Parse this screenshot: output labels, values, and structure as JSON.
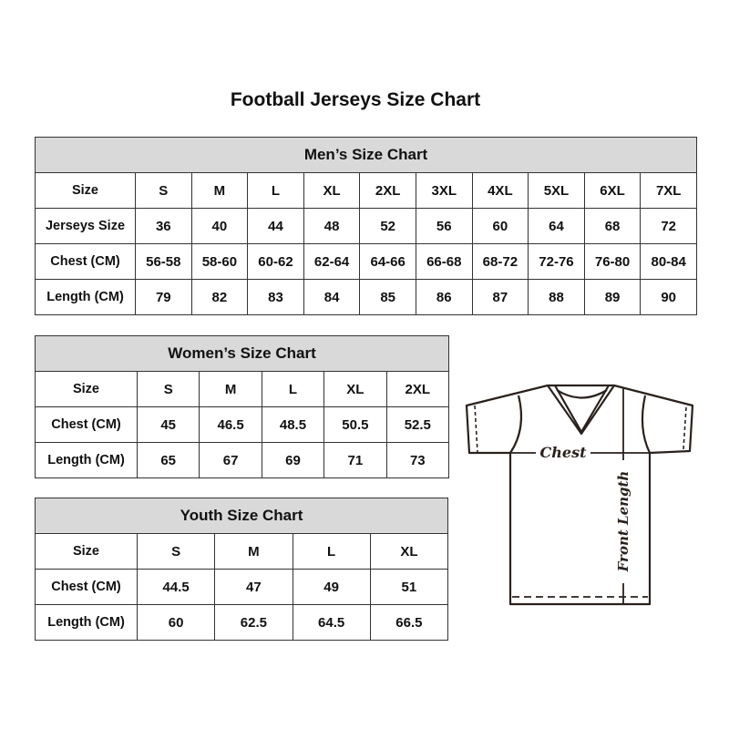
{
  "title": "Football Jerseys Size Chart",
  "men": {
    "heading": "Men’s Size Chart",
    "rows": [
      [
        "Size",
        "S",
        "M",
        "L",
        "XL",
        "2XL",
        "3XL",
        "4XL",
        "5XL",
        "6XL",
        "7XL"
      ],
      [
        "Jerseys Size",
        "36",
        "40",
        "44",
        "48",
        "52",
        "56",
        "60",
        "64",
        "68",
        "72"
      ],
      [
        "Chest (CM)",
        "56-58",
        "58-60",
        "60-62",
        "62-64",
        "64-66",
        "66-68",
        "68-72",
        "72-76",
        "76-80",
        "80-84"
      ],
      [
        "Length (CM)",
        "79",
        "82",
        "83",
        "84",
        "85",
        "86",
        "87",
        "88",
        "89",
        "90"
      ]
    ]
  },
  "women": {
    "heading": "Women’s Size Chart",
    "rows": [
      [
        "Size",
        "S",
        "M",
        "L",
        "XL",
        "2XL"
      ],
      [
        "Chest (CM)",
        "45",
        "46.5",
        "48.5",
        "50.5",
        "52.5"
      ],
      [
        "Length (CM)",
        "65",
        "67",
        "69",
        "71",
        "73"
      ]
    ]
  },
  "youth": {
    "heading": "Youth Size Chart",
    "rows": [
      [
        "Size",
        "S",
        "M",
        "L",
        "XL"
      ],
      [
        "Chest (CM)",
        "44.5",
        "47",
        "49",
        "51"
      ],
      [
        "Length (CM)",
        "60",
        "62.5",
        "64.5",
        "66.5"
      ]
    ]
  },
  "diagram": {
    "chest_label": "Chest",
    "length_label": "Front Length"
  },
  "colors": {
    "header_bg": "#d9d9d9",
    "border": "#333333"
  }
}
